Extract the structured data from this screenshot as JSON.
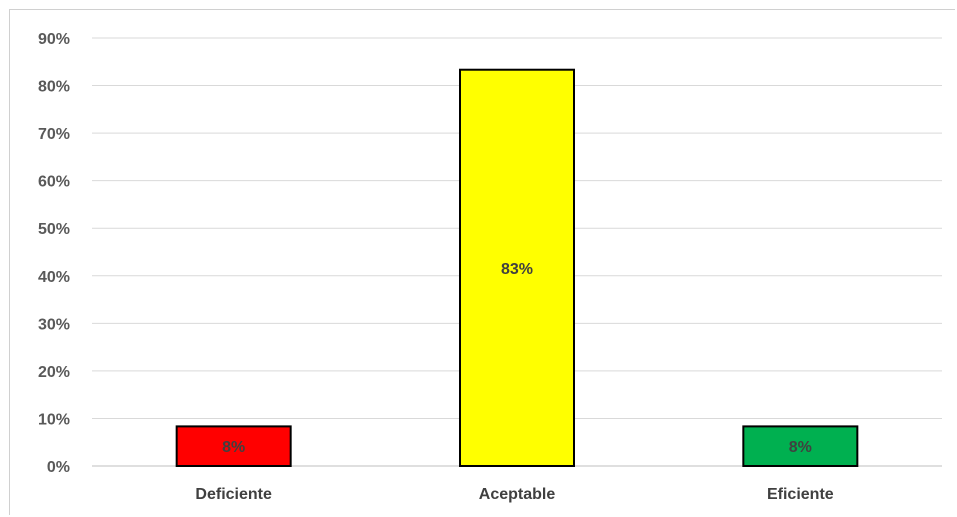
{
  "chart_data": {
    "type": "bar",
    "categories": [
      "Deficiente",
      "Aceptable",
      "Eficiente"
    ],
    "values": [
      8.33,
      83.33,
      8.33
    ],
    "data_labels": [
      "8%",
      "83%",
      "8%"
    ],
    "colors": [
      "#ff0000",
      "#ffff00",
      "#00b050"
    ],
    "y_ticks": [
      "0%",
      "10%",
      "20%",
      "30%",
      "40%",
      "50%",
      "60%",
      "70%",
      "80%",
      "90%"
    ],
    "ylim": [
      0,
      90
    ],
    "grid": true,
    "legend": "none"
  }
}
